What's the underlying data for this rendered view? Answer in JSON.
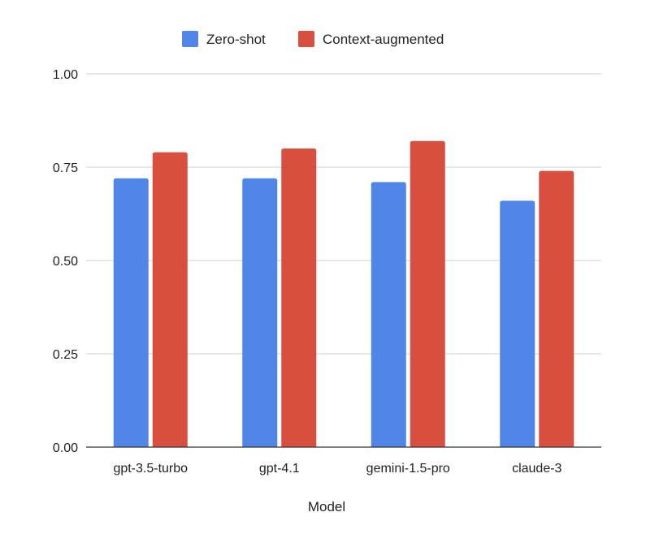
{
  "chart_data": {
    "type": "bar",
    "categories": [
      "gpt-3.5-turbo",
      "gpt-4.1",
      "gemini-1.5-pro",
      "claude-3"
    ],
    "series": [
      {
        "name": "Zero-shot",
        "color": "#4f86e8",
        "values": [
          0.72,
          0.72,
          0.71,
          0.66
        ]
      },
      {
        "name": "Context-augmented",
        "color": "#d94f3f",
        "values": [
          0.79,
          0.8,
          0.82,
          0.74
        ]
      }
    ],
    "title": "",
    "xlabel": "Model",
    "ylabel": "",
    "ylim": [
      0,
      1.0
    ],
    "yticks": [
      "0.00",
      "0.25",
      "0.50",
      "0.75",
      "1.00"
    ],
    "ytick_values": [
      0,
      0.25,
      0.5,
      0.75,
      1.0
    ],
    "grid": true,
    "legend_position": "top"
  }
}
